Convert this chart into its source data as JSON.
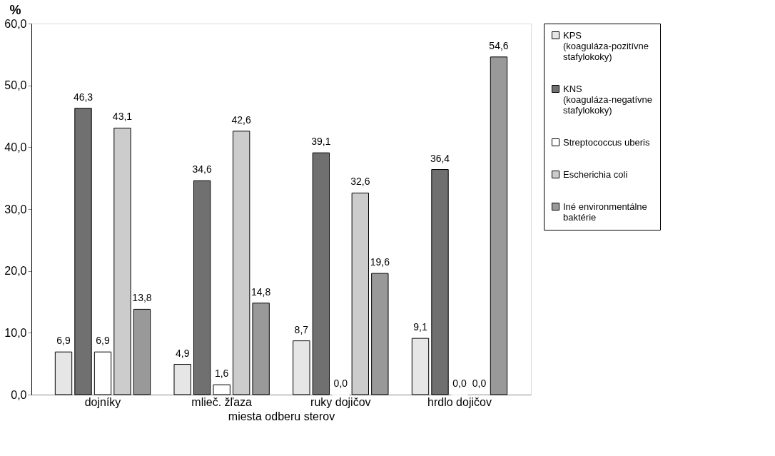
{
  "chart_data": {
    "type": "bar",
    "xlabel": "miesta odberu sterov",
    "ylabel": "%",
    "categories": [
      "dojníky",
      "mlieč. žľaza",
      "ruky dojičov",
      "hrdlo dojičov"
    ],
    "series": [
      {
        "name": "KPS (koaguláza-pozitívne stafylokoky)",
        "color": "#e6e6e6",
        "values": [
          6.9,
          4.9,
          8.7,
          9.1
        ],
        "value_labels": [
          "6,9",
          "4,9",
          "8,7",
          "9,1"
        ]
      },
      {
        "name": "KNS (koaguláza-negatívne stafylokoky)",
        "color": "#707070",
        "values": [
          46.3,
          34.6,
          39.1,
          36.4
        ],
        "value_labels": [
          "46,3",
          "34,6",
          "39,1",
          "36,4"
        ]
      },
      {
        "name": "Streptococcus uberis",
        "color": "#ffffff",
        "values": [
          6.9,
          1.6,
          0.0,
          0.0
        ],
        "value_labels": [
          "6,9",
          "1,6",
          "0,0",
          "0,0"
        ]
      },
      {
        "name": "Escherichia coli",
        "color": "#cccccc",
        "values": [
          43.1,
          42.6,
          32.6,
          0.0
        ],
        "value_labels": [
          "43,1",
          "42,6",
          "32,6",
          "0,0"
        ]
      },
      {
        "name": "Iné environmentálne baktérie",
        "color": "#999999",
        "values": [
          13.8,
          14.8,
          19.6,
          54.6
        ],
        "value_labels": [
          "13,8",
          "14,8",
          "19,6",
          "54,6"
        ]
      }
    ],
    "ylim": [
      0,
      60
    ],
    "yticks": [
      {
        "value": 0,
        "label": "0,0"
      },
      {
        "value": 10,
        "label": "10,0"
      },
      {
        "value": 20,
        "label": "20,0"
      },
      {
        "value": 30,
        "label": "30,0"
      },
      {
        "value": 40,
        "label": "40,0"
      },
      {
        "value": 50,
        "label": "50,0"
      },
      {
        "value": 60,
        "label": "60,0"
      }
    ],
    "grid": false,
    "legend": "right"
  }
}
